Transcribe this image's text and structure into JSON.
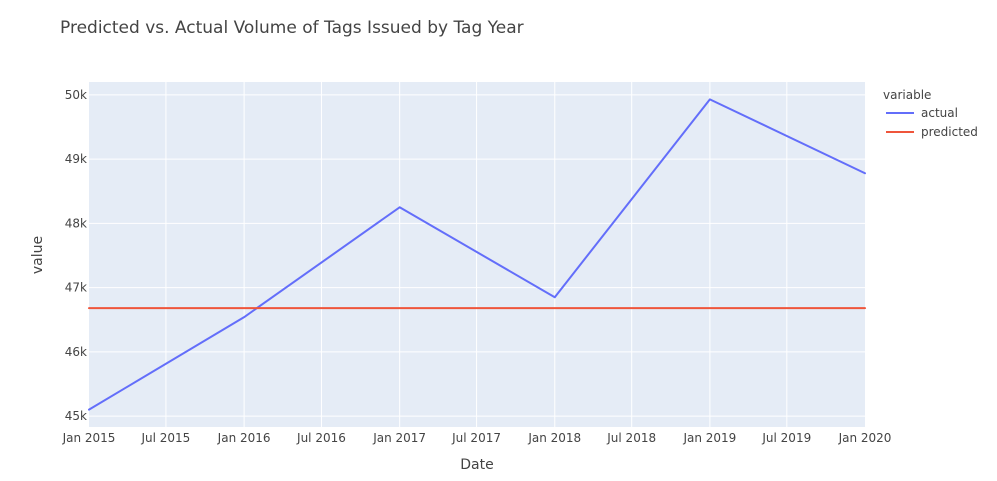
{
  "chart_data": {
    "type": "line",
    "title": "Predicted vs. Actual Volume of Tags Issued by Tag Year",
    "xlabel": "Date",
    "ylabel": "value",
    "x_ticks": [
      "Jan 2015",
      "Jul 2015",
      "Jan 2016",
      "Jul 2016",
      "Jan 2017",
      "Jul 2017",
      "Jan 2018",
      "Jul 2018",
      "Jan 2019",
      "Jul 2019",
      "Jan 2020"
    ],
    "y_ticks": [
      "45k",
      "46k",
      "47k",
      "48k",
      "49k",
      "50k"
    ],
    "xlim": [
      "2015-01-01",
      "2020-01-01"
    ],
    "ylim": [
      44830,
      50200
    ],
    "grid": true,
    "legend": {
      "title": "variable",
      "placement": "right"
    },
    "x": [
      "2015-01-01",
      "2016-01-01",
      "2017-01-01",
      "2018-01-01",
      "2019-01-01",
      "2020-01-01"
    ],
    "series": [
      {
        "name": "actual",
        "color": "#636efa",
        "values": [
          45100,
          46540,
          48250,
          46850,
          49930,
          48780
        ]
      },
      {
        "name": "predicted",
        "color": "#ef553b",
        "values": [
          46680,
          46680,
          46680,
          46680,
          46680,
          46680
        ]
      }
    ]
  }
}
